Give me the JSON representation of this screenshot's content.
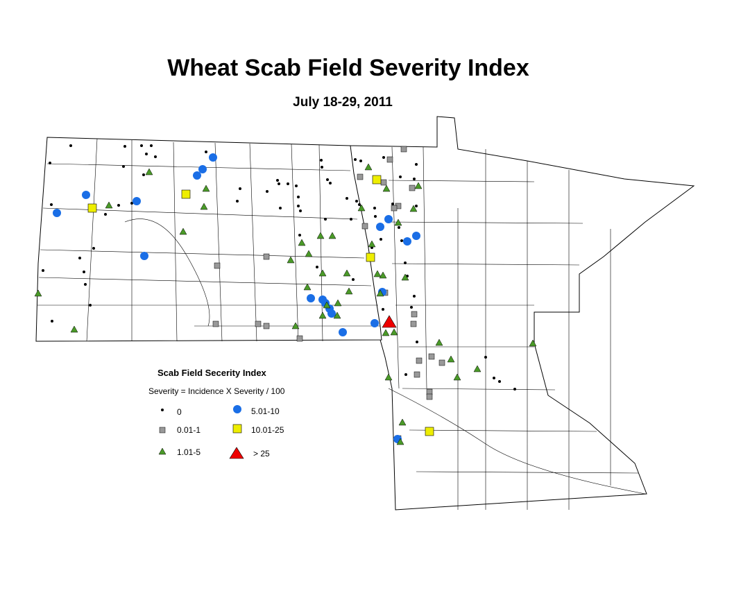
{
  "header": {
    "title": "Wheat Scab Field Severity Index",
    "subtitle": "July 18-29, 2011"
  },
  "legend": {
    "title": "Scab Field Secerity Index",
    "formula": "Severity = Incidence X Severity / 100",
    "items": [
      "0",
      "0.01-1",
      "1.01-5",
      "5.01-10",
      "10.01-25",
      "> 25"
    ]
  }
}
